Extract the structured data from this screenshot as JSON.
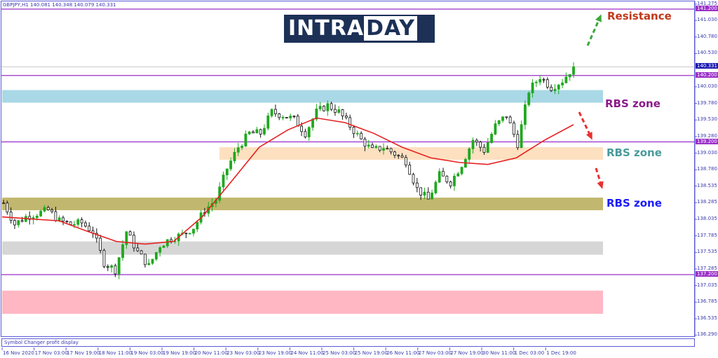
{
  "header": {
    "title": "GBPJPY,H1  140.081 140.348 140.079 140.331"
  },
  "status_bar": {
    "text": "Symbol Changer profit display"
  },
  "logo": {
    "part1": "INTRA",
    "part2": "DAY"
  },
  "colors": {
    "bull": "#1fa81f",
    "bear": "#111111",
    "ma": "#e62020",
    "level_line": "#9a2fc8",
    "axis": "#3a3ab0",
    "zone_blue": "#a9d8e6",
    "zone_orange": "#fde0c0",
    "zone_olive": "#c2b76e",
    "zone_grey": "#d6d6d6",
    "zone_pink": "#ffb8c3"
  },
  "chart_data": {
    "type": "candlestick",
    "symbol": "GBPJPY",
    "timeframe": "H1",
    "ylim": [
      136.29,
      141.275
    ],
    "y_ticks": [
      "141.275",
      "141.030",
      "140.780",
      "140.530",
      "140.030",
      "139.780",
      "139.530",
      "139.280",
      "139.030",
      "138.780",
      "138.535",
      "138.285",
      "138.035",
      "137.785",
      "137.535",
      "137.285",
      "137.035",
      "136.785",
      "136.535",
      "136.290"
    ],
    "x_ticks": [
      "16 Nov 2020",
      "17 Nov 03:00",
      "17 Nov 19:00",
      "18 Nov 11:00",
      "19 Nov 03:00",
      "19 Nov 19:00",
      "20 Nov 11:00",
      "23 Nov 03:00",
      "23 Nov 19:00",
      "24 Nov 11:00",
      "25 Nov 03:00",
      "25 Nov 19:00",
      "26 Nov 11:00",
      "27 Nov 03:00",
      "27 Nov 19:00",
      "30 Nov 11:00",
      "1 Dec 03:00",
      "1 Dec 19:00"
    ],
    "current_price": "140.331",
    "level_lines": [
      "141.200",
      "140.200",
      "139.200",
      "137.200"
    ],
    "approx_closes": [
      138.28,
      137.96,
      138.07,
      138.12,
      138.17,
      138.01,
      137.96,
      137.98,
      137.85,
      137.38,
      137.27,
      137.85,
      137.54,
      137.33,
      137.64,
      137.75,
      137.8,
      137.91,
      138.17,
      138.33,
      138.8,
      139.12,
      139.33,
      139.33,
      139.65,
      139.6,
      139.54,
      139.33,
      139.65,
      139.75,
      139.65,
      139.44,
      139.23,
      139.07,
      139.12,
      139.02,
      138.91,
      138.49,
      138.33,
      138.7,
      138.59,
      138.86,
      139.23,
      139.07,
      139.44,
      139.6,
      139.17,
      139.97,
      140.18,
      140.02,
      140.12,
      140.331
    ],
    "moving_average": [
      138.07,
      138.04,
      138.01,
      137.85,
      137.7,
      137.66,
      137.7,
      138.07,
      138.59,
      139.12,
      139.38,
      139.56,
      139.49,
      139.33,
      139.12,
      138.96,
      138.89,
      138.86,
      138.96,
      139.23,
      139.46
    ],
    "zones": [
      {
        "label": "RBS zone",
        "top": 139.98,
        "bottom": 139.79,
        "color": "#a9d8e6",
        "label_color": "#8b1a8b"
      },
      {
        "label": "RBS zone",
        "top": 139.12,
        "bottom": 138.93,
        "color": "#fde0c0",
        "label_color": "#4a9a9a"
      },
      {
        "label": "RBS zone",
        "top": 138.36,
        "bottom": 138.17,
        "color": "#c2b76e",
        "label_color": "#1a1aff"
      },
      {
        "top": 137.7,
        "bottom": 137.5,
        "color": "#d6d6d6"
      },
      {
        "top": 136.96,
        "bottom": 136.61,
        "color": "#ffb8c3"
      }
    ],
    "annotations": [
      {
        "text": "Resistance",
        "color": "#c0391b"
      }
    ]
  }
}
